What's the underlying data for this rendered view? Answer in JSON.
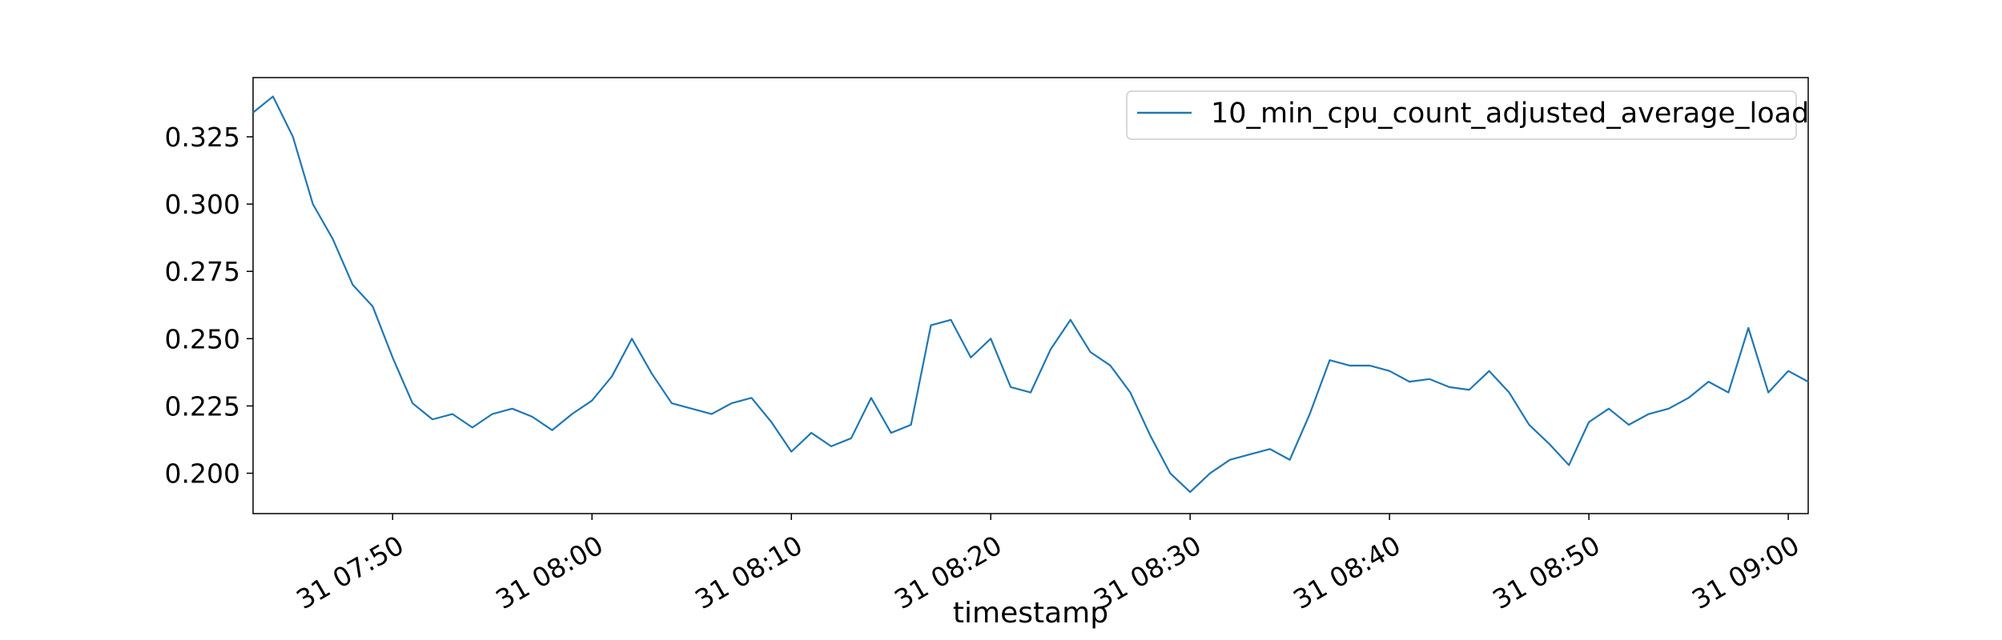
{
  "chart_data": {
    "type": "line",
    "title": "",
    "xlabel": "timestamp",
    "ylabel": "",
    "xlim": [
      "07:43",
      "09:01"
    ],
    "ylim": [
      0.185,
      0.347
    ],
    "grid": false,
    "legend_position": "top-right",
    "x_ticks": [
      "31 07:50",
      "31 08:00",
      "31 08:10",
      "31 08:20",
      "31 08:30",
      "31 08:40",
      "31 08:50",
      "31 09:00"
    ],
    "y_ticks": [
      "0.200",
      "0.225",
      "0.250",
      "0.275",
      "0.300",
      "0.325"
    ],
    "series": [
      {
        "name": "10_min_cpu_count_adjusted_average_load",
        "color": "#1f77b4",
        "x": [
          "07:43",
          "07:44",
          "07:45",
          "07:46",
          "07:47",
          "07:48",
          "07:49",
          "07:50",
          "07:51",
          "07:52",
          "07:53",
          "07:54",
          "07:55",
          "07:56",
          "07:57",
          "07:58",
          "07:59",
          "08:00",
          "08:01",
          "08:02",
          "08:03",
          "08:04",
          "08:05",
          "08:06",
          "08:07",
          "08:08",
          "08:09",
          "08:10",
          "08:11",
          "08:12",
          "08:13",
          "08:14",
          "08:15",
          "08:16",
          "08:17",
          "08:18",
          "08:19",
          "08:20",
          "08:21",
          "08:22",
          "08:23",
          "08:24",
          "08:25",
          "08:26",
          "08:27",
          "08:28",
          "08:29",
          "08:30",
          "08:31",
          "08:32",
          "08:33",
          "08:34",
          "08:35",
          "08:36",
          "08:37",
          "08:38",
          "08:39",
          "08:40",
          "08:41",
          "08:42",
          "08:43",
          "08:44",
          "08:45",
          "08:46",
          "08:47",
          "08:48",
          "08:49",
          "08:50",
          "08:51",
          "08:52",
          "08:53",
          "08:54",
          "08:55",
          "08:56",
          "08:57",
          "08:58",
          "08:59",
          "09:00",
          "09:01"
        ],
        "values": [
          0.334,
          0.34,
          0.325,
          0.3,
          0.287,
          0.27,
          0.262,
          0.243,
          0.226,
          0.22,
          0.222,
          0.217,
          0.222,
          0.224,
          0.221,
          0.216,
          0.222,
          0.227,
          0.236,
          0.25,
          0.237,
          0.226,
          0.224,
          0.222,
          0.226,
          0.228,
          0.219,
          0.208,
          0.215,
          0.21,
          0.213,
          0.228,
          0.215,
          0.218,
          0.255,
          0.257,
          0.243,
          0.25,
          0.232,
          0.23,
          0.246,
          0.257,
          0.245,
          0.24,
          0.23,
          0.214,
          0.2,
          0.193,
          0.2,
          0.205,
          0.207,
          0.209,
          0.205,
          0.222,
          0.242,
          0.24,
          0.24,
          0.238,
          0.234,
          0.235,
          0.232,
          0.231,
          0.238,
          0.23,
          0.218,
          0.211,
          0.203,
          0.219,
          0.224,
          0.218,
          0.222,
          0.224,
          0.228,
          0.234,
          0.23,
          0.254,
          0.23,
          0.238,
          0.234
        ]
      }
    ]
  }
}
